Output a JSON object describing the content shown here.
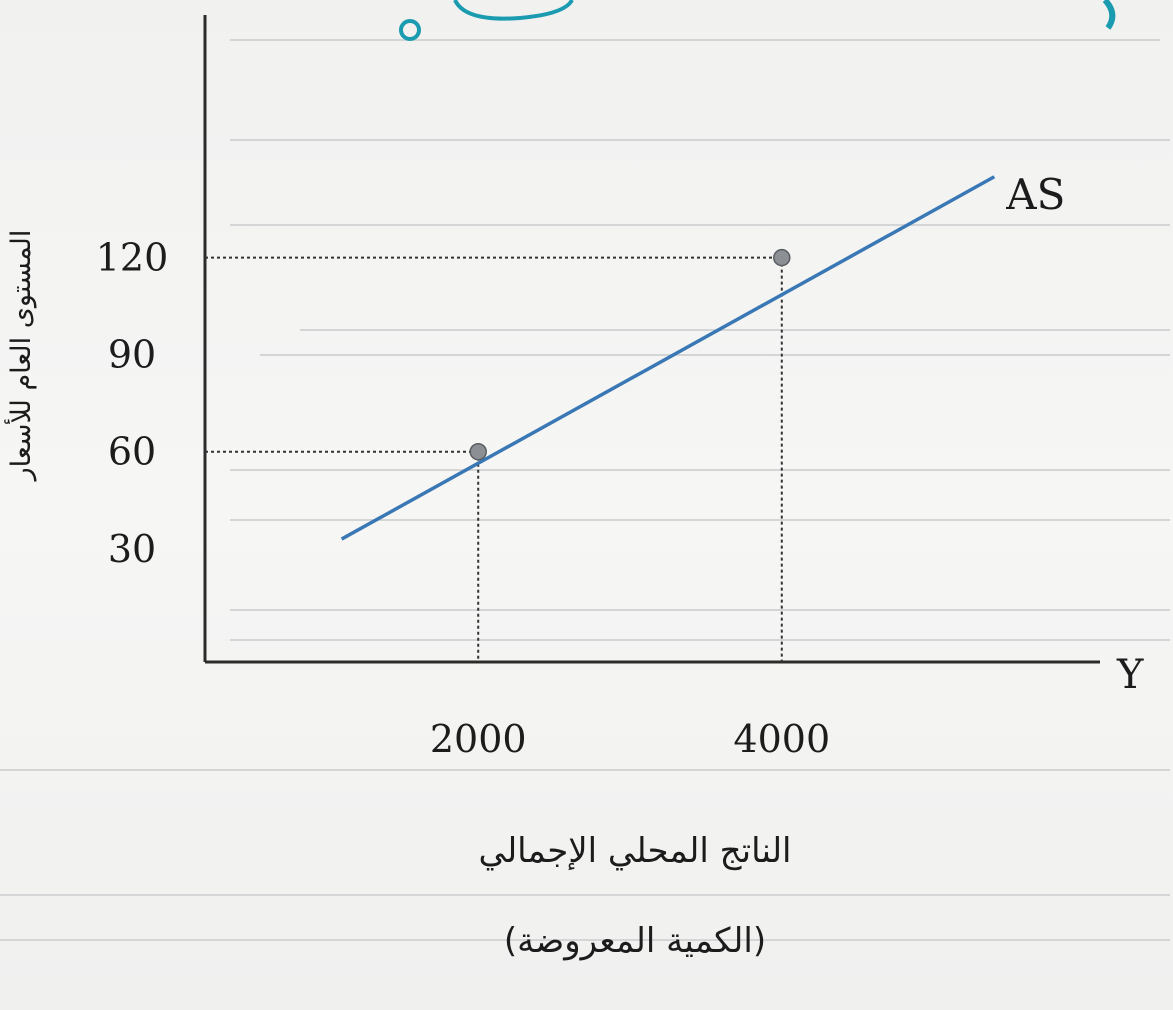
{
  "chart_data": {
    "type": "line",
    "title": "",
    "xlabel": "Y",
    "ylabel": "المستوى العام للأسعار",
    "x_caption_line1": "الناتج المحلي الإجمالي",
    "x_caption_line2": "(الكمية المعروضة)",
    "x_ticks": [
      2000,
      4000
    ],
    "y_ticks": [
      30,
      60,
      90,
      120
    ],
    "xlim": [
      200,
      5800
    ],
    "ylim": [
      -5,
      195
    ],
    "grid": false,
    "series": [
      {
        "name": "AS",
        "color": "#3a78b5",
        "x": [
          1100,
          5400
        ],
        "y": [
          33,
          145
        ]
      }
    ],
    "highlight_points": [
      {
        "x": 2000,
        "y": 60
      },
      {
        "x": 4000,
        "y": 120
      }
    ]
  }
}
